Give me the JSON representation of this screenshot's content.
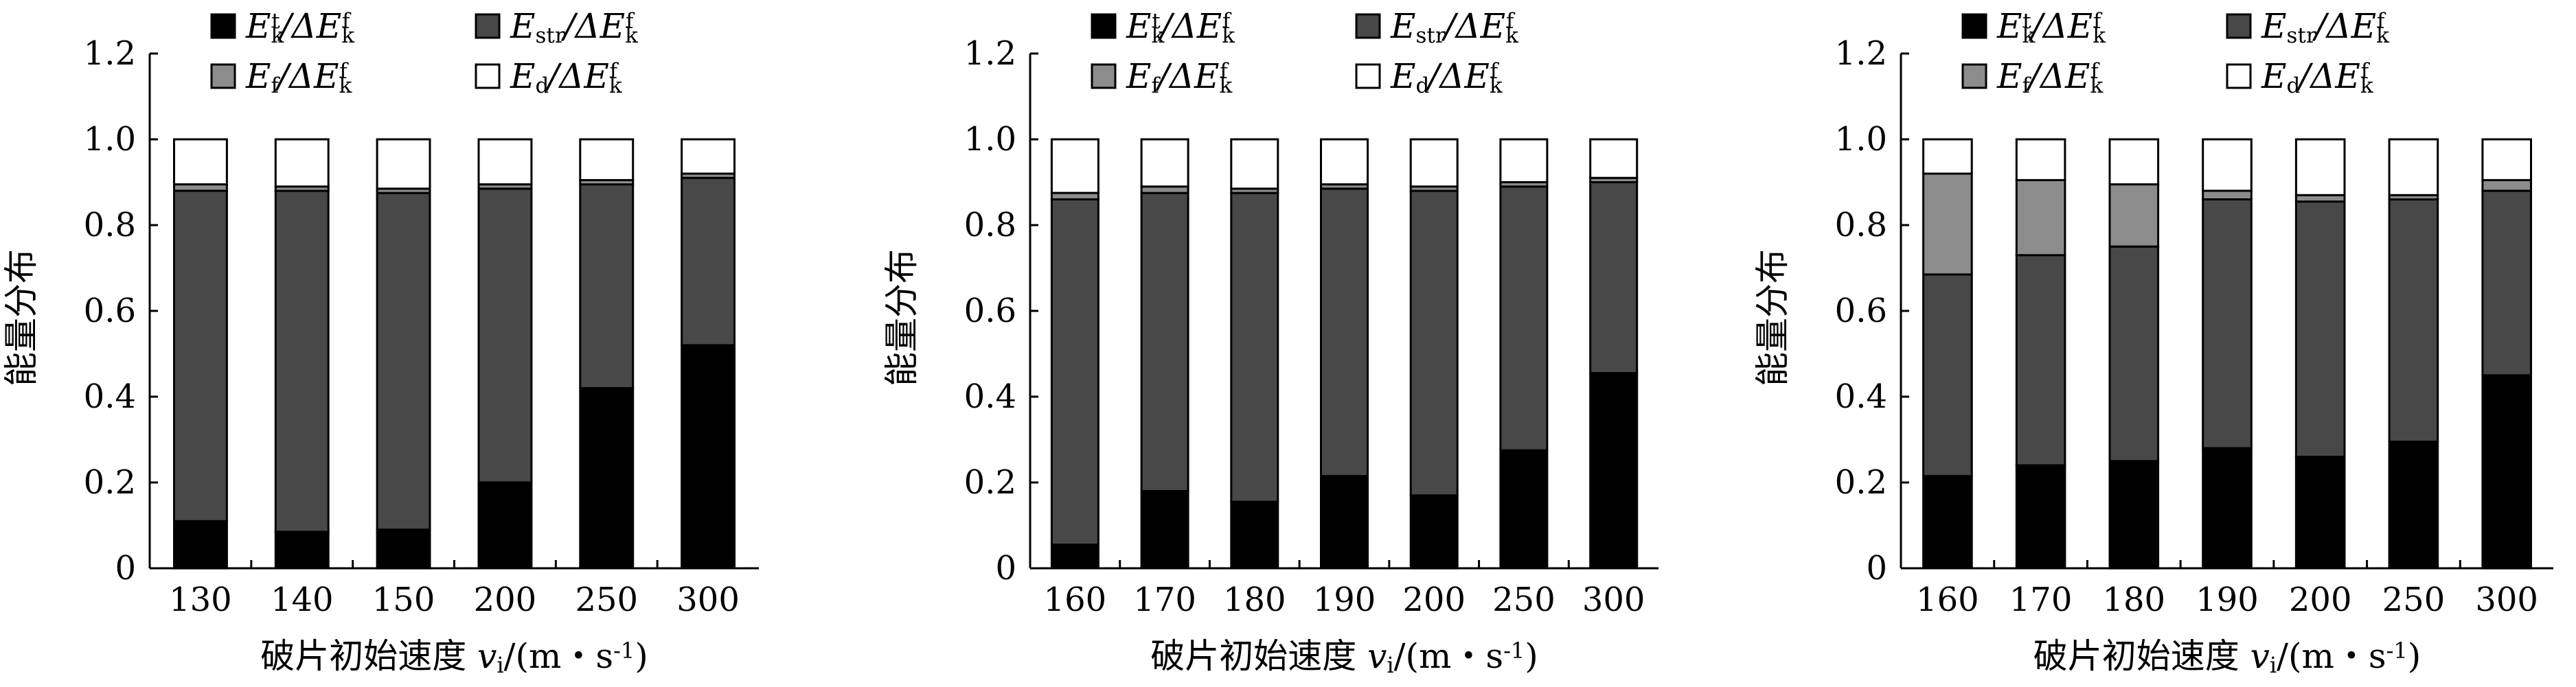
{
  "chart_data": [
    {
      "type": "bar",
      "stacked": true,
      "categories": [
        "130",
        "140",
        "150",
        "200",
        "250",
        "300"
      ],
      "series": [
        {
          "name": "E_k^t/ΔE_k^f",
          "color": "#000000",
          "values": [
            0.11,
            0.085,
            0.09,
            0.2,
            0.42,
            0.52
          ]
        },
        {
          "name": "E_str/ΔE_k^f",
          "color": "#484848",
          "values": [
            0.77,
            0.795,
            0.785,
            0.685,
            0.475,
            0.39
          ]
        },
        {
          "name": "E_f/ΔE_k^f",
          "color": "#8c8c8c",
          "values": [
            0.015,
            0.01,
            0.01,
            0.01,
            0.01,
            0.01
          ]
        },
        {
          "name": "E_d/ΔE_k^f",
          "color": "#ffffff",
          "values": [
            0.105,
            0.11,
            0.115,
            0.105,
            0.095,
            0.08
          ]
        }
      ],
      "yticks": [
        "0",
        "0.2",
        "0.4",
        "0.6",
        "0.8",
        "1.0",
        "1.2"
      ],
      "ylim": [
        0,
        1.2
      ],
      "ylabel": "能量分布",
      "xlabel": "破片初始速度 v_i/(m・s^-1)",
      "grid": false,
      "legend": "top"
    },
    {
      "type": "bar",
      "stacked": true,
      "categories": [
        "160",
        "170",
        "180",
        "190",
        "200",
        "250",
        "300"
      ],
      "series": [
        {
          "name": "E_k^t/ΔE_k^f",
          "color": "#000000",
          "values": [
            0.055,
            0.18,
            0.155,
            0.215,
            0.17,
            0.275,
            0.455
          ]
        },
        {
          "name": "E_str/ΔE_k^f",
          "color": "#484848",
          "values": [
            0.805,
            0.695,
            0.72,
            0.67,
            0.71,
            0.615,
            0.445
          ]
        },
        {
          "name": "E_f/ΔE_k^f",
          "color": "#8c8c8c",
          "values": [
            0.015,
            0.015,
            0.01,
            0.01,
            0.01,
            0.01,
            0.01
          ]
        },
        {
          "name": "E_d/ΔE_k^f",
          "color": "#ffffff",
          "values": [
            0.125,
            0.11,
            0.115,
            0.105,
            0.11,
            0.1,
            0.09
          ]
        }
      ],
      "yticks": [
        "0",
        "0.2",
        "0.4",
        "0.6",
        "0.8",
        "1.0",
        "1.2"
      ],
      "ylim": [
        0,
        1.2
      ],
      "ylabel": "能量分布",
      "xlabel": "破片初始速度 v_i/(m・s^-1)",
      "grid": false,
      "legend": "top"
    },
    {
      "type": "bar",
      "stacked": true,
      "categories": [
        "160",
        "170",
        "180",
        "190",
        "200",
        "250",
        "300"
      ],
      "series": [
        {
          "name": "E_k^t/ΔE_k^f",
          "color": "#000000",
          "values": [
            0.215,
            0.24,
            0.25,
            0.28,
            0.26,
            0.295,
            0.45
          ]
        },
        {
          "name": "E_str/ΔE_k^f",
          "color": "#484848",
          "values": [
            0.47,
            0.49,
            0.5,
            0.58,
            0.595,
            0.565,
            0.43
          ]
        },
        {
          "name": "E_f/ΔE_k^f",
          "color": "#8c8c8c",
          "values": [
            0.235,
            0.175,
            0.145,
            0.02,
            0.015,
            0.01,
            0.025
          ]
        },
        {
          "name": "E_d/ΔE_k^f",
          "color": "#ffffff",
          "values": [
            0.08,
            0.095,
            0.105,
            0.12,
            0.13,
            0.13,
            0.095
          ]
        }
      ],
      "yticks": [
        "0",
        "0.2",
        "0.4",
        "0.6",
        "0.8",
        "1.0",
        "1.2"
      ],
      "ylim": [
        0,
        1.2
      ],
      "ylabel": "能量分布",
      "xlabel": "破片初始速度 v_i/(m・s^-1)",
      "grid": false,
      "legend": "top"
    }
  ]
}
